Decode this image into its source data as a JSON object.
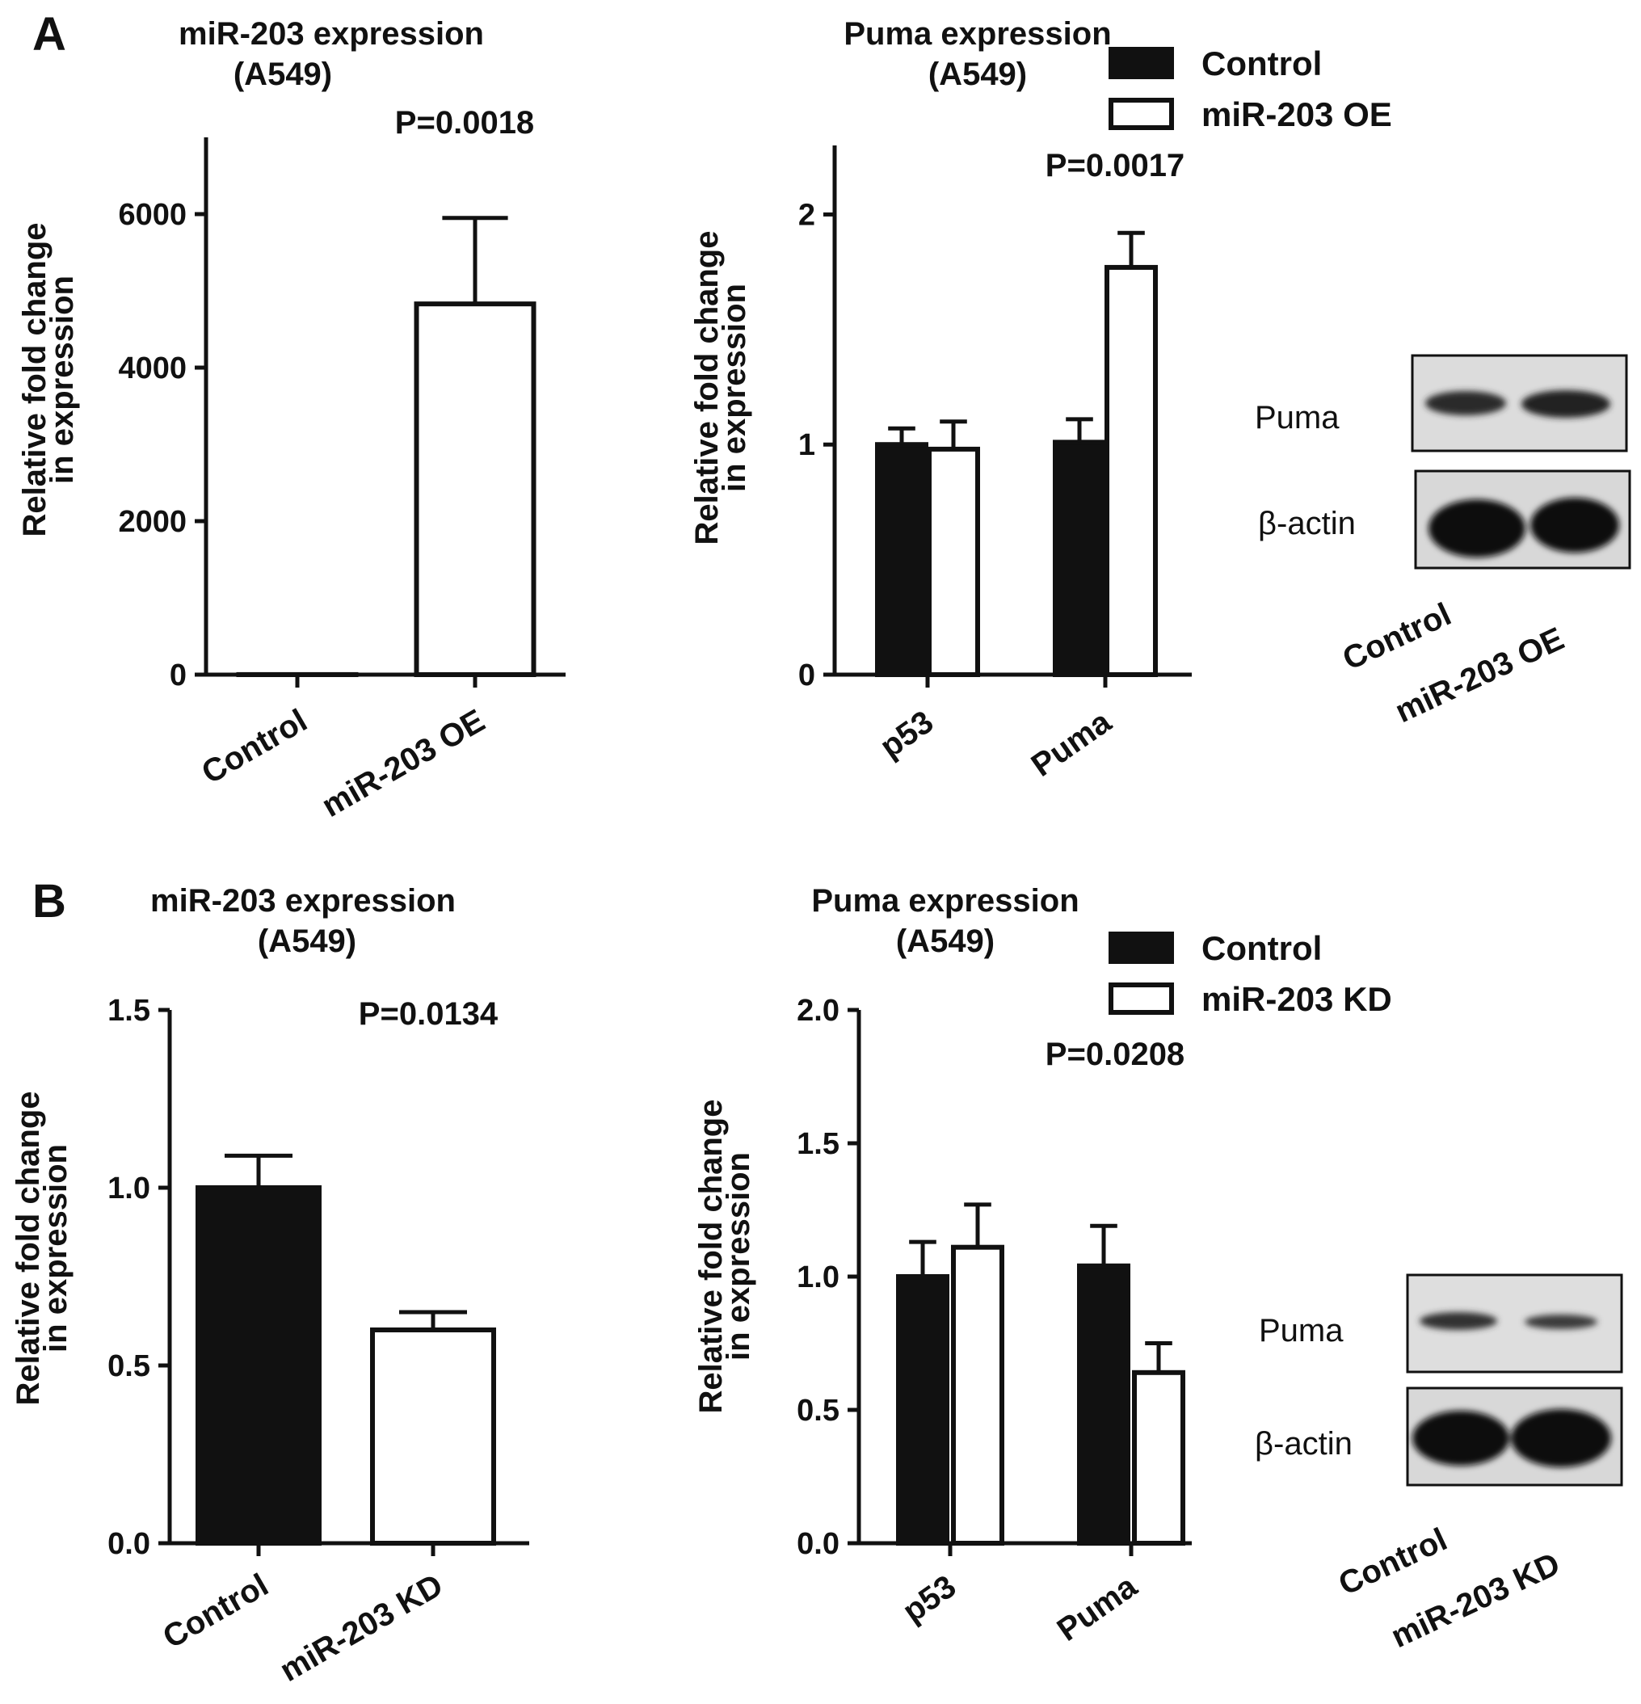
{
  "figure": {
    "panel_a_letter": "A",
    "panel_b_letter": "B"
  },
  "chart_data": [
    {
      "id": "A-left",
      "type": "bar",
      "title": "miR-203 expression",
      "subtitle": "(A549)",
      "ylabel_line1": "Relative fold change",
      "ylabel_line2": "in expression",
      "categories": [
        "Control",
        "miR-203 OE"
      ],
      "values": [
        1,
        4830
      ],
      "errors": [
        0,
        1120
      ],
      "fills": [
        "black",
        "white"
      ],
      "ylim": [
        0,
        7000
      ],
      "yticks": [
        0,
        2000,
        4000,
        6000
      ],
      "ytick_labels": [
        "0",
        "2000",
        "4000",
        "6000"
      ],
      "annotation": "P=0.0018",
      "grid": false
    },
    {
      "id": "A-right",
      "type": "bar",
      "title": "Puma expression",
      "subtitle": "(A549)",
      "ylabel_line1": "Relative fold change",
      "ylabel_line2": "in expression",
      "categories": [
        "p53",
        "Puma"
      ],
      "series": [
        {
          "name": "Control",
          "values": [
            1.0,
            1.01
          ],
          "errors": [
            0.07,
            0.1
          ],
          "fill": "black"
        },
        {
          "name": "miR-203 OE",
          "values": [
            0.98,
            1.77
          ],
          "errors": [
            0.12,
            0.15
          ],
          "fill": "white"
        }
      ],
      "ylim": [
        0,
        2.3
      ],
      "yticks": [
        0,
        1,
        2
      ],
      "ytick_labels": [
        "0",
        "1",
        "2"
      ],
      "annotation": "P=0.0017",
      "legend_position": "top-right",
      "grid": false
    },
    {
      "id": "B-left",
      "type": "bar",
      "title": "miR-203 expression",
      "subtitle": "(A549)",
      "ylabel_line1": "Relative fold change",
      "ylabel_line2": "in expression",
      "categories": [
        "Control",
        "miR-203 KD"
      ],
      "values": [
        1.0,
        0.6
      ],
      "errors": [
        0.09,
        0.05
      ],
      "fills": [
        "black",
        "white"
      ],
      "ylim": [
        0,
        1.5
      ],
      "yticks": [
        0,
        0.5,
        1.0,
        1.5
      ],
      "ytick_labels": [
        "0.0",
        "0.5",
        "1.0",
        "1.5"
      ],
      "annotation": "P=0.0134",
      "grid": false
    },
    {
      "id": "B-right",
      "type": "bar",
      "title": "Puma expression",
      "subtitle": "(A549)",
      "ylabel_line1": "Relative fold change",
      "ylabel_line2": "in expression",
      "categories": [
        "p53",
        "Puma"
      ],
      "series": [
        {
          "name": "Control",
          "values": [
            1.0,
            1.04
          ],
          "errors": [
            0.13,
            0.15
          ],
          "fill": "black"
        },
        {
          "name": "miR-203 KD",
          "values": [
            1.11,
            0.64
          ],
          "errors": [
            0.16,
            0.11
          ],
          "fill": "white"
        }
      ],
      "ylim": [
        0,
        2.0
      ],
      "yticks": [
        0,
        0.5,
        1.0,
        1.5,
        2.0
      ],
      "ytick_labels": [
        "0.0",
        "0.5",
        "1.0",
        "1.5",
        "2.0"
      ],
      "annotation": "P=0.0208",
      "legend_position": "top-right",
      "grid": false
    }
  ],
  "blots": [
    {
      "id": "A-blot",
      "rows": [
        "Puma",
        "β-actin"
      ],
      "lanes": [
        "Control",
        "miR-203 OE"
      ]
    },
    {
      "id": "B-blot",
      "rows": [
        "Puma",
        "β-actin"
      ],
      "lanes": [
        "Control",
        "miR-203 KD"
      ]
    }
  ]
}
